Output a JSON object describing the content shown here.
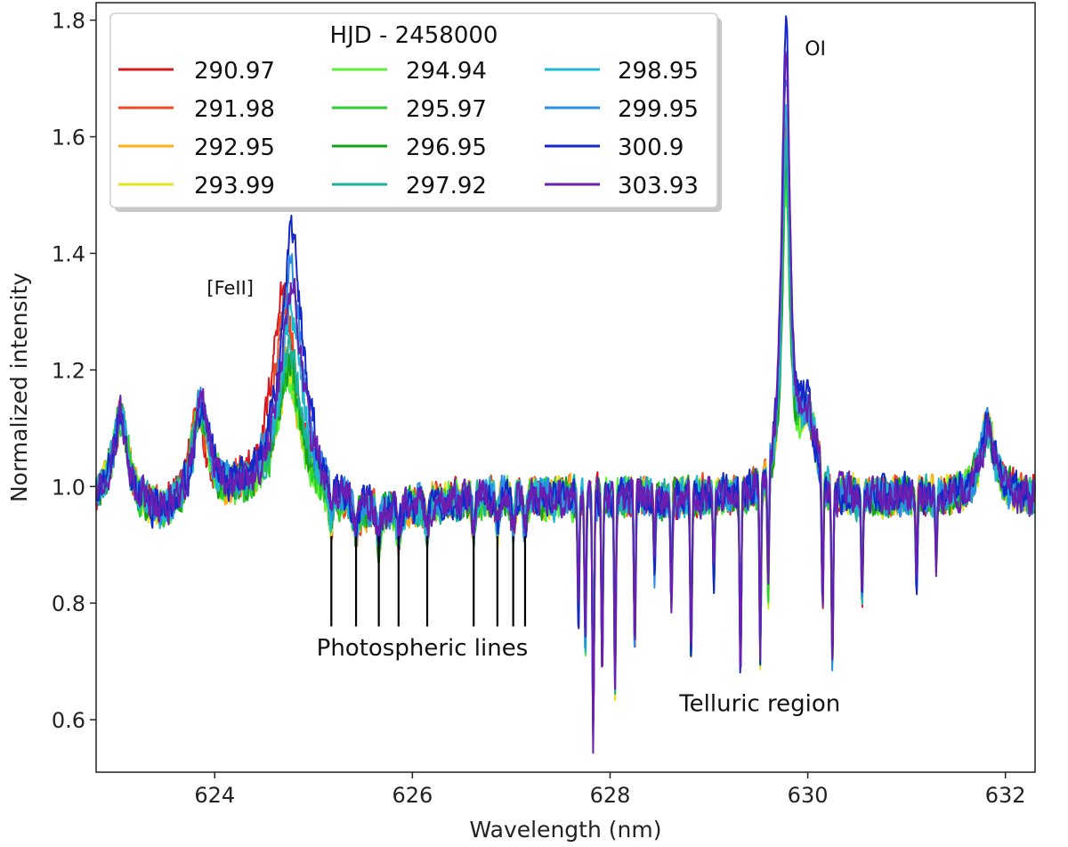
{
  "chart_data": {
    "type": "line",
    "xlabel": "Wavelength (nm)",
    "ylabel": "Normalized intensity",
    "xlim": [
      622.8,
      632.3
    ],
    "ylim": [
      0.51,
      1.83
    ],
    "x_ticks": [
      624,
      626,
      628,
      630,
      632
    ],
    "x_tick_labels": [
      "624",
      "626",
      "628",
      "630",
      "632"
    ],
    "y_ticks": [
      0.6,
      0.8,
      1.0,
      1.2,
      1.4,
      1.6,
      1.8
    ],
    "y_tick_labels": [
      "0.6",
      "0.8",
      "1.0",
      "1.2",
      "1.4",
      "1.6",
      "1.8"
    ],
    "grid": false,
    "legend": {
      "title": "HJD - 2458000",
      "placement": "top-left",
      "columns": 3
    },
    "series": [
      {
        "name": "290.97",
        "color": "#d7191c",
        "peaks": {
          "oi": 1.62,
          "feii": 1.34,
          "fe_shift": -0.06
        }
      },
      {
        "name": "291.98",
        "color": "#f04a23",
        "peaks": {
          "oi": 1.6,
          "feii": 1.31,
          "fe_shift": -0.04
        }
      },
      {
        "name": "292.95",
        "color": "#fdae1a",
        "peaks": {
          "oi": 1.58,
          "feii": 1.22,
          "fe_shift": -0.02
        }
      },
      {
        "name": "293.99",
        "color": "#e5e51e",
        "peaks": {
          "oi": 1.55,
          "feii": 1.2,
          "fe_shift": 0
        }
      },
      {
        "name": "294.94",
        "color": "#5df23a",
        "peaks": {
          "oi": 1.5,
          "feii": 1.19,
          "fe_shift": 0
        }
      },
      {
        "name": "295.97",
        "color": "#2cd22c",
        "peaks": {
          "oi": 1.52,
          "feii": 1.2,
          "fe_shift": 0
        }
      },
      {
        "name": "296.95",
        "color": "#17a117",
        "peaks": {
          "oi": 1.55,
          "feii": 1.21,
          "fe_shift": 0
        }
      },
      {
        "name": "297.92",
        "color": "#1ab39a",
        "peaks": {
          "oi": 1.58,
          "feii": 1.24,
          "fe_shift": 0.01
        }
      },
      {
        "name": "298.95",
        "color": "#20b8d0",
        "peaks": {
          "oi": 1.65,
          "feii": 1.3,
          "fe_shift": 0.02
        }
      },
      {
        "name": "299.95",
        "color": "#2a8ee6",
        "peaks": {
          "oi": 1.72,
          "feii": 1.38,
          "fe_shift": 0.02
        }
      },
      {
        "name": "300.9",
        "color": "#1428c8",
        "peaks": {
          "oi": 1.81,
          "feii": 1.43,
          "fe_shift": 0.03
        }
      },
      {
        "name": "303.93",
        "color": "#6a1fb0",
        "peaks": {
          "oi": 1.74,
          "feii": 1.34,
          "fe_shift": 0.03
        }
      }
    ],
    "features": {
      "continuum": 0.98,
      "emission_lines": [
        {
          "center": 623.05,
          "height": 0.15
        },
        {
          "center": 623.85,
          "height": 0.17
        },
        {
          "center": 624.75,
          "height": 0.4
        },
        {
          "center": 629.78,
          "height": 0.8
        },
        {
          "center": 631.82,
          "height": 0.12
        }
      ],
      "photospheric_line_positions": [
        625.18,
        625.43,
        625.66,
        625.86,
        626.15,
        626.62,
        626.86,
        627.02,
        627.14
      ],
      "telluric_dips": [
        {
          "center": 627.68,
          "depth": 0.2
        },
        {
          "center": 627.75,
          "depth": 0.26
        },
        {
          "center": 627.83,
          "depth": 0.42
        },
        {
          "center": 627.92,
          "depth": 0.28
        },
        {
          "center": 628.05,
          "depth": 0.32
        },
        {
          "center": 628.25,
          "depth": 0.25
        },
        {
          "center": 628.45,
          "depth": 0.12
        },
        {
          "center": 628.62,
          "depth": 0.18
        },
        {
          "center": 628.82,
          "depth": 0.26
        },
        {
          "center": 629.05,
          "depth": 0.14
        },
        {
          "center": 629.32,
          "depth": 0.3
        },
        {
          "center": 629.52,
          "depth": 0.29
        },
        {
          "center": 629.6,
          "depth": 0.2
        },
        {
          "center": 630.15,
          "depth": 0.22
        },
        {
          "center": 630.25,
          "depth": 0.28
        },
        {
          "center": 630.55,
          "depth": 0.18
        },
        {
          "center": 631.1,
          "depth": 0.15
        },
        {
          "center": 631.3,
          "depth": 0.1
        }
      ]
    },
    "annotations": [
      {
        "text": "OI",
        "x": 629.97,
        "y": 1.74
      },
      {
        "text": "[FeII]",
        "x": 623.92,
        "y": 1.33
      },
      {
        "text": "Photospheric lines",
        "x": 626.1,
        "y": 0.71
      },
      {
        "text": "Telluric region",
        "x": 628.7,
        "y": 0.615
      }
    ],
    "photospheric_markers": {
      "y_top": 0.915,
      "y_bottom": 0.76
    }
  }
}
